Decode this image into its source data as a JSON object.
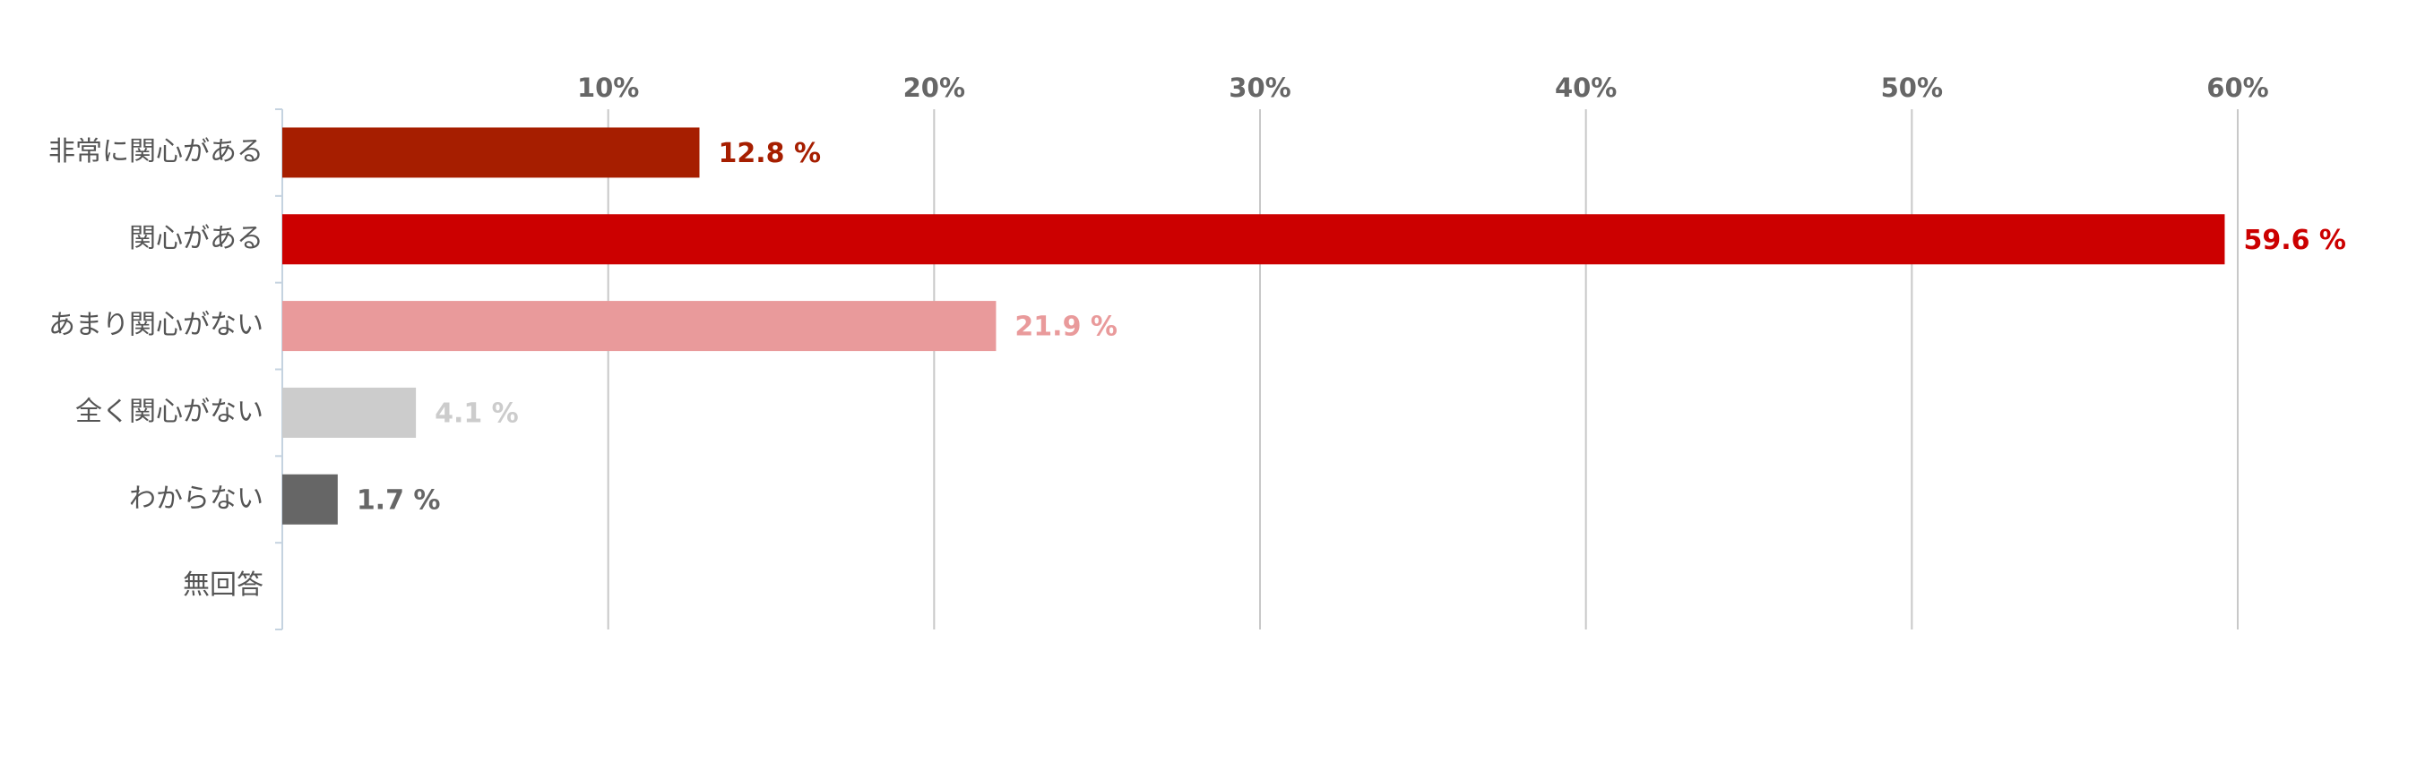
{
  "chart_data": {
    "type": "hbar",
    "categories": [
      "非常に関心がある",
      "関心がある",
      "あまり関心がない",
      "全く関心がない",
      "わからない",
      "無回答"
    ],
    "values": [
      12.8,
      59.6,
      21.9,
      4.1,
      1.7,
      null
    ],
    "value_labels": [
      "12.8 %",
      "59.6 %",
      "21.9 %",
      "4.1 %",
      "1.7 %",
      null
    ],
    "colors": [
      "#a61e00",
      "#cc0000",
      "#e99a9b",
      "#cccccc",
      "#666666",
      null
    ],
    "xlim": [
      0,
      60
    ],
    "xticks": [
      {
        "value": 10,
        "label": "10%"
      },
      {
        "value": 20,
        "label": "20%"
      },
      {
        "value": 30,
        "label": "30%"
      },
      {
        "value": 40,
        "label": "40%"
      },
      {
        "value": 50,
        "label": "50%"
      },
      {
        "value": 60,
        "label": "60%"
      }
    ],
    "grid": true
  }
}
